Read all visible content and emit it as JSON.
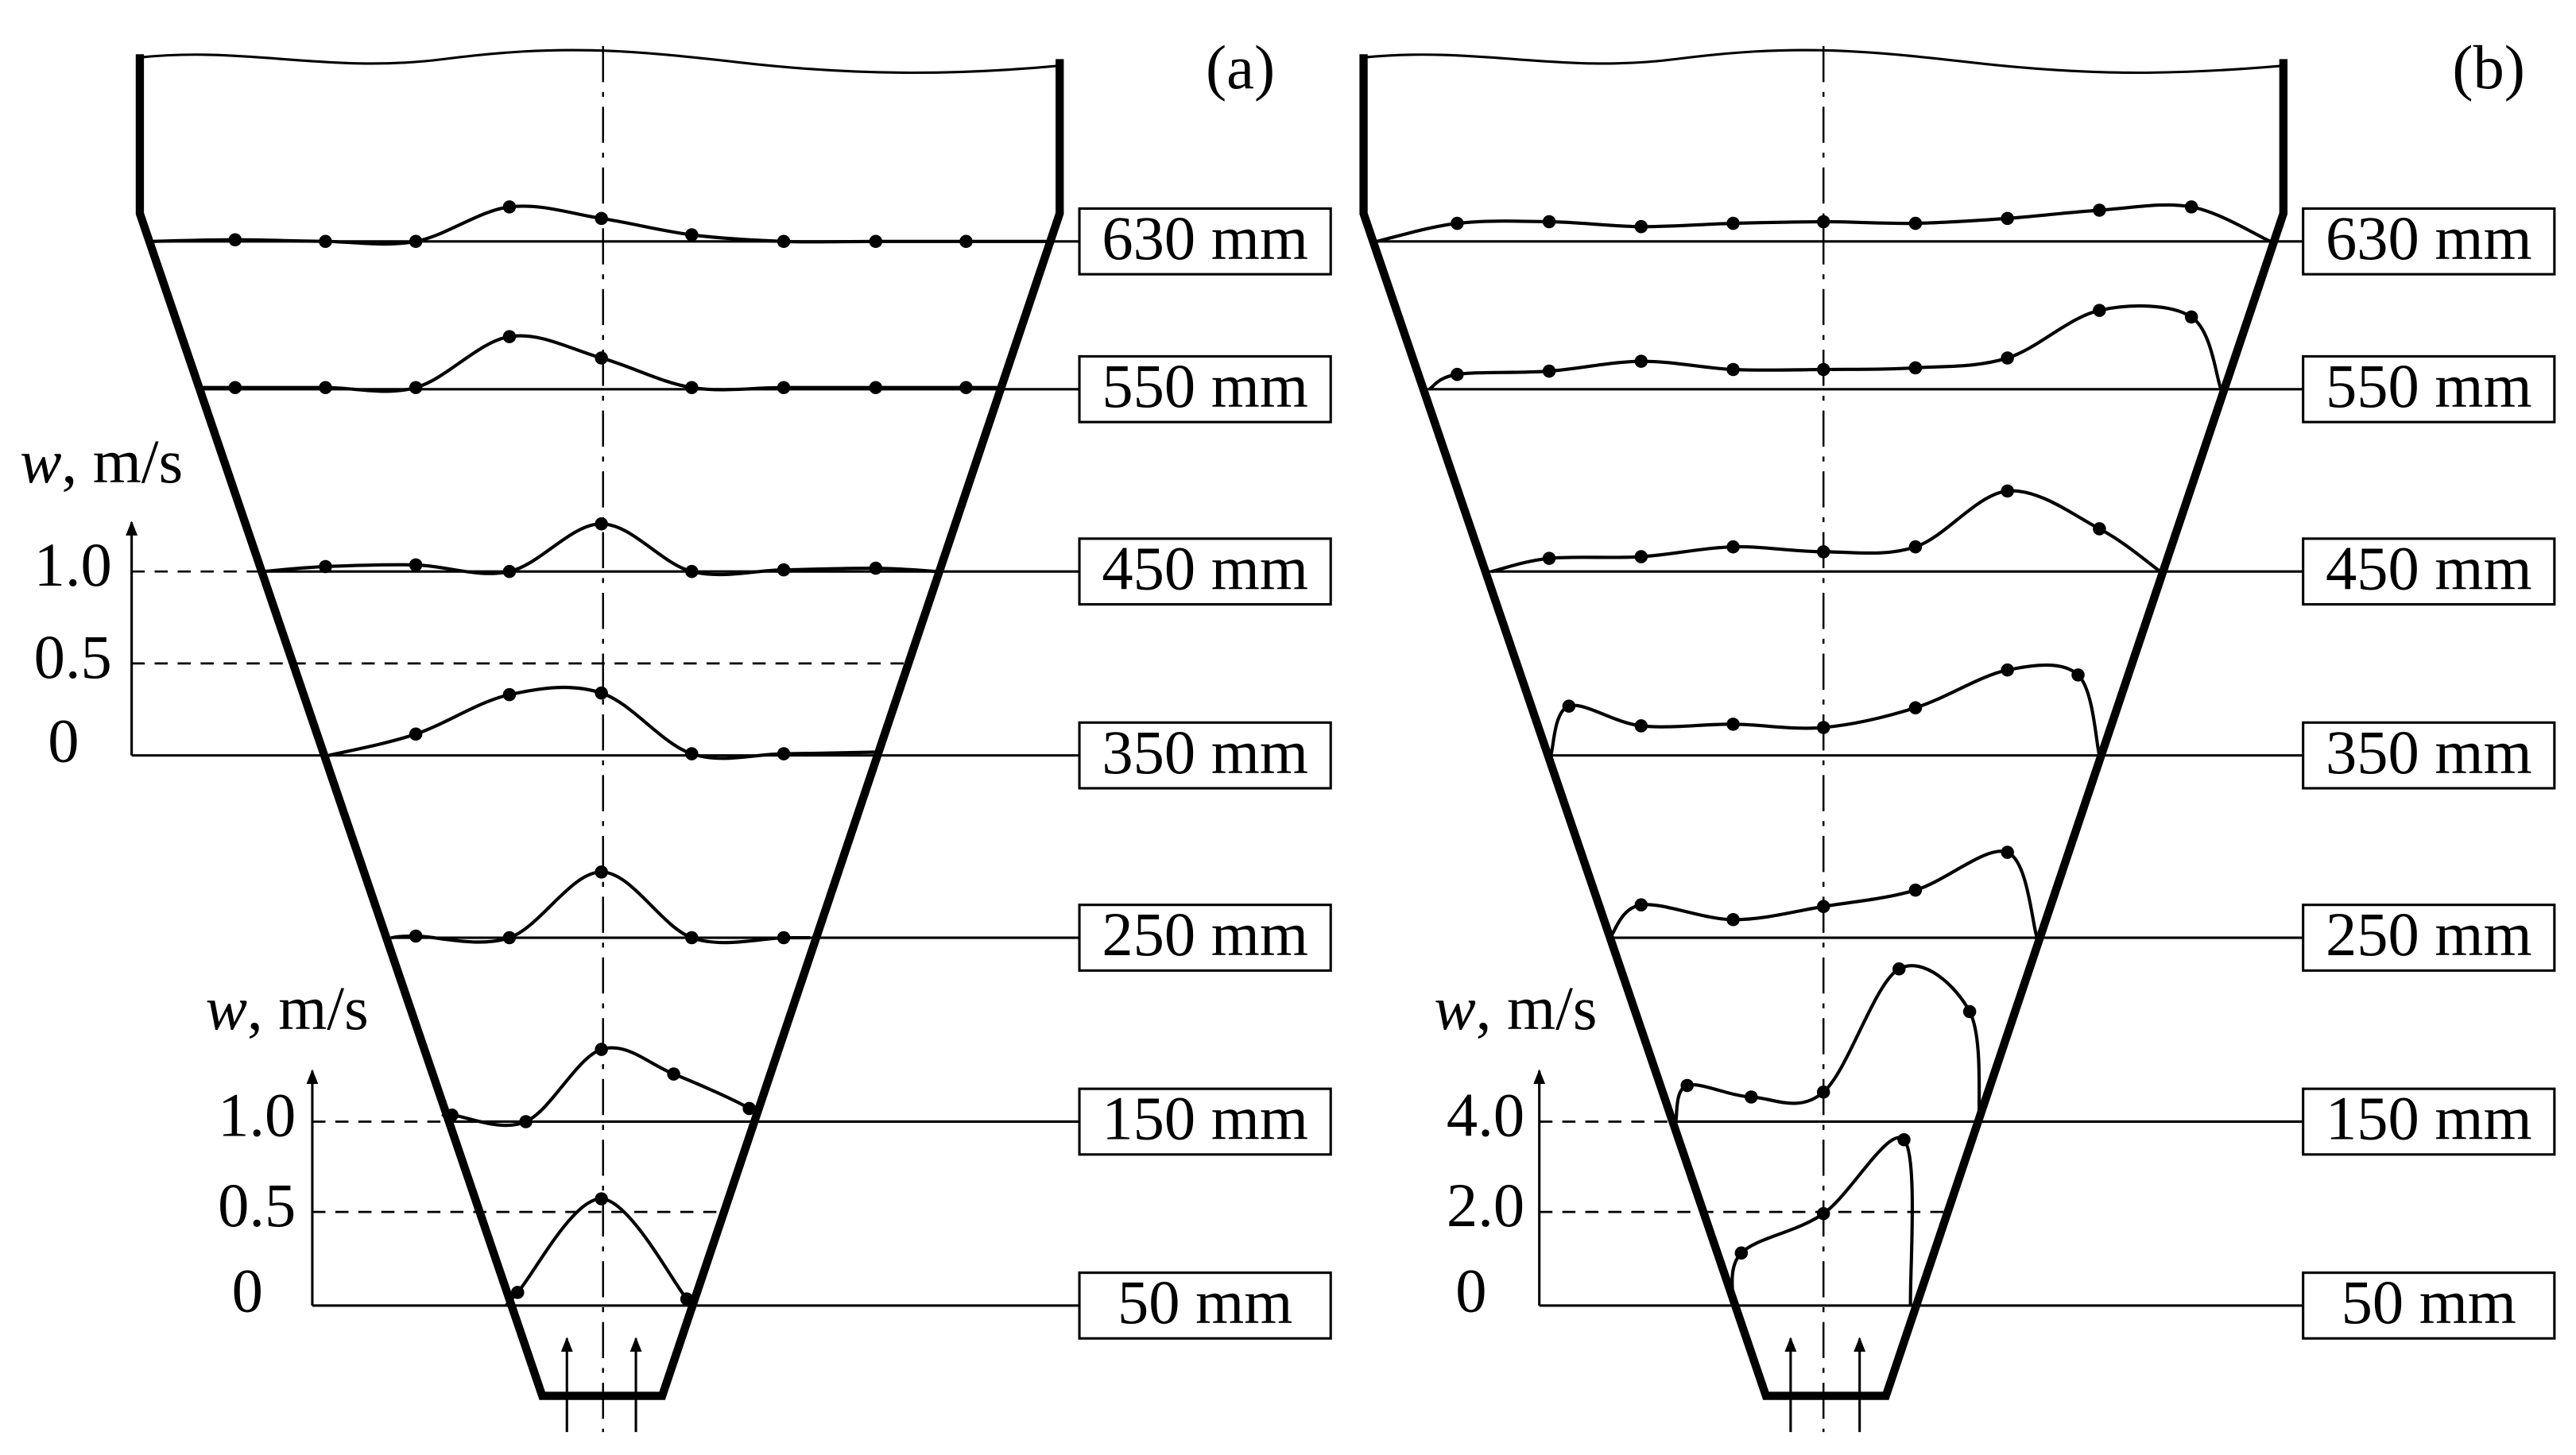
{
  "panels": [
    {
      "label": "(a)",
      "levels": [
        "630 mm",
        "550 mm",
        "450 mm",
        "350 mm",
        "250 mm",
        "150 mm",
        "50 mm"
      ],
      "axes": [
        {
          "title_symbol": "w",
          "title_unit": ", m/s",
          "ticks": [
            "1.0",
            "0.5",
            "0"
          ]
        },
        {
          "title_symbol": "w",
          "title_unit": ", m/s",
          "ticks": [
            "1.0",
            "0.5",
            "0"
          ]
        }
      ]
    },
    {
      "label": "(b)",
      "levels": [
        "630 mm",
        "550 mm",
        "450 mm",
        "350 mm",
        "250 mm",
        "150 mm",
        "50 mm"
      ],
      "axes": [
        {
          "title_symbol": "w",
          "title_unit": ", m/s",
          "ticks": [
            "4.0",
            "2.0",
            "0"
          ]
        }
      ]
    }
  ]
}
